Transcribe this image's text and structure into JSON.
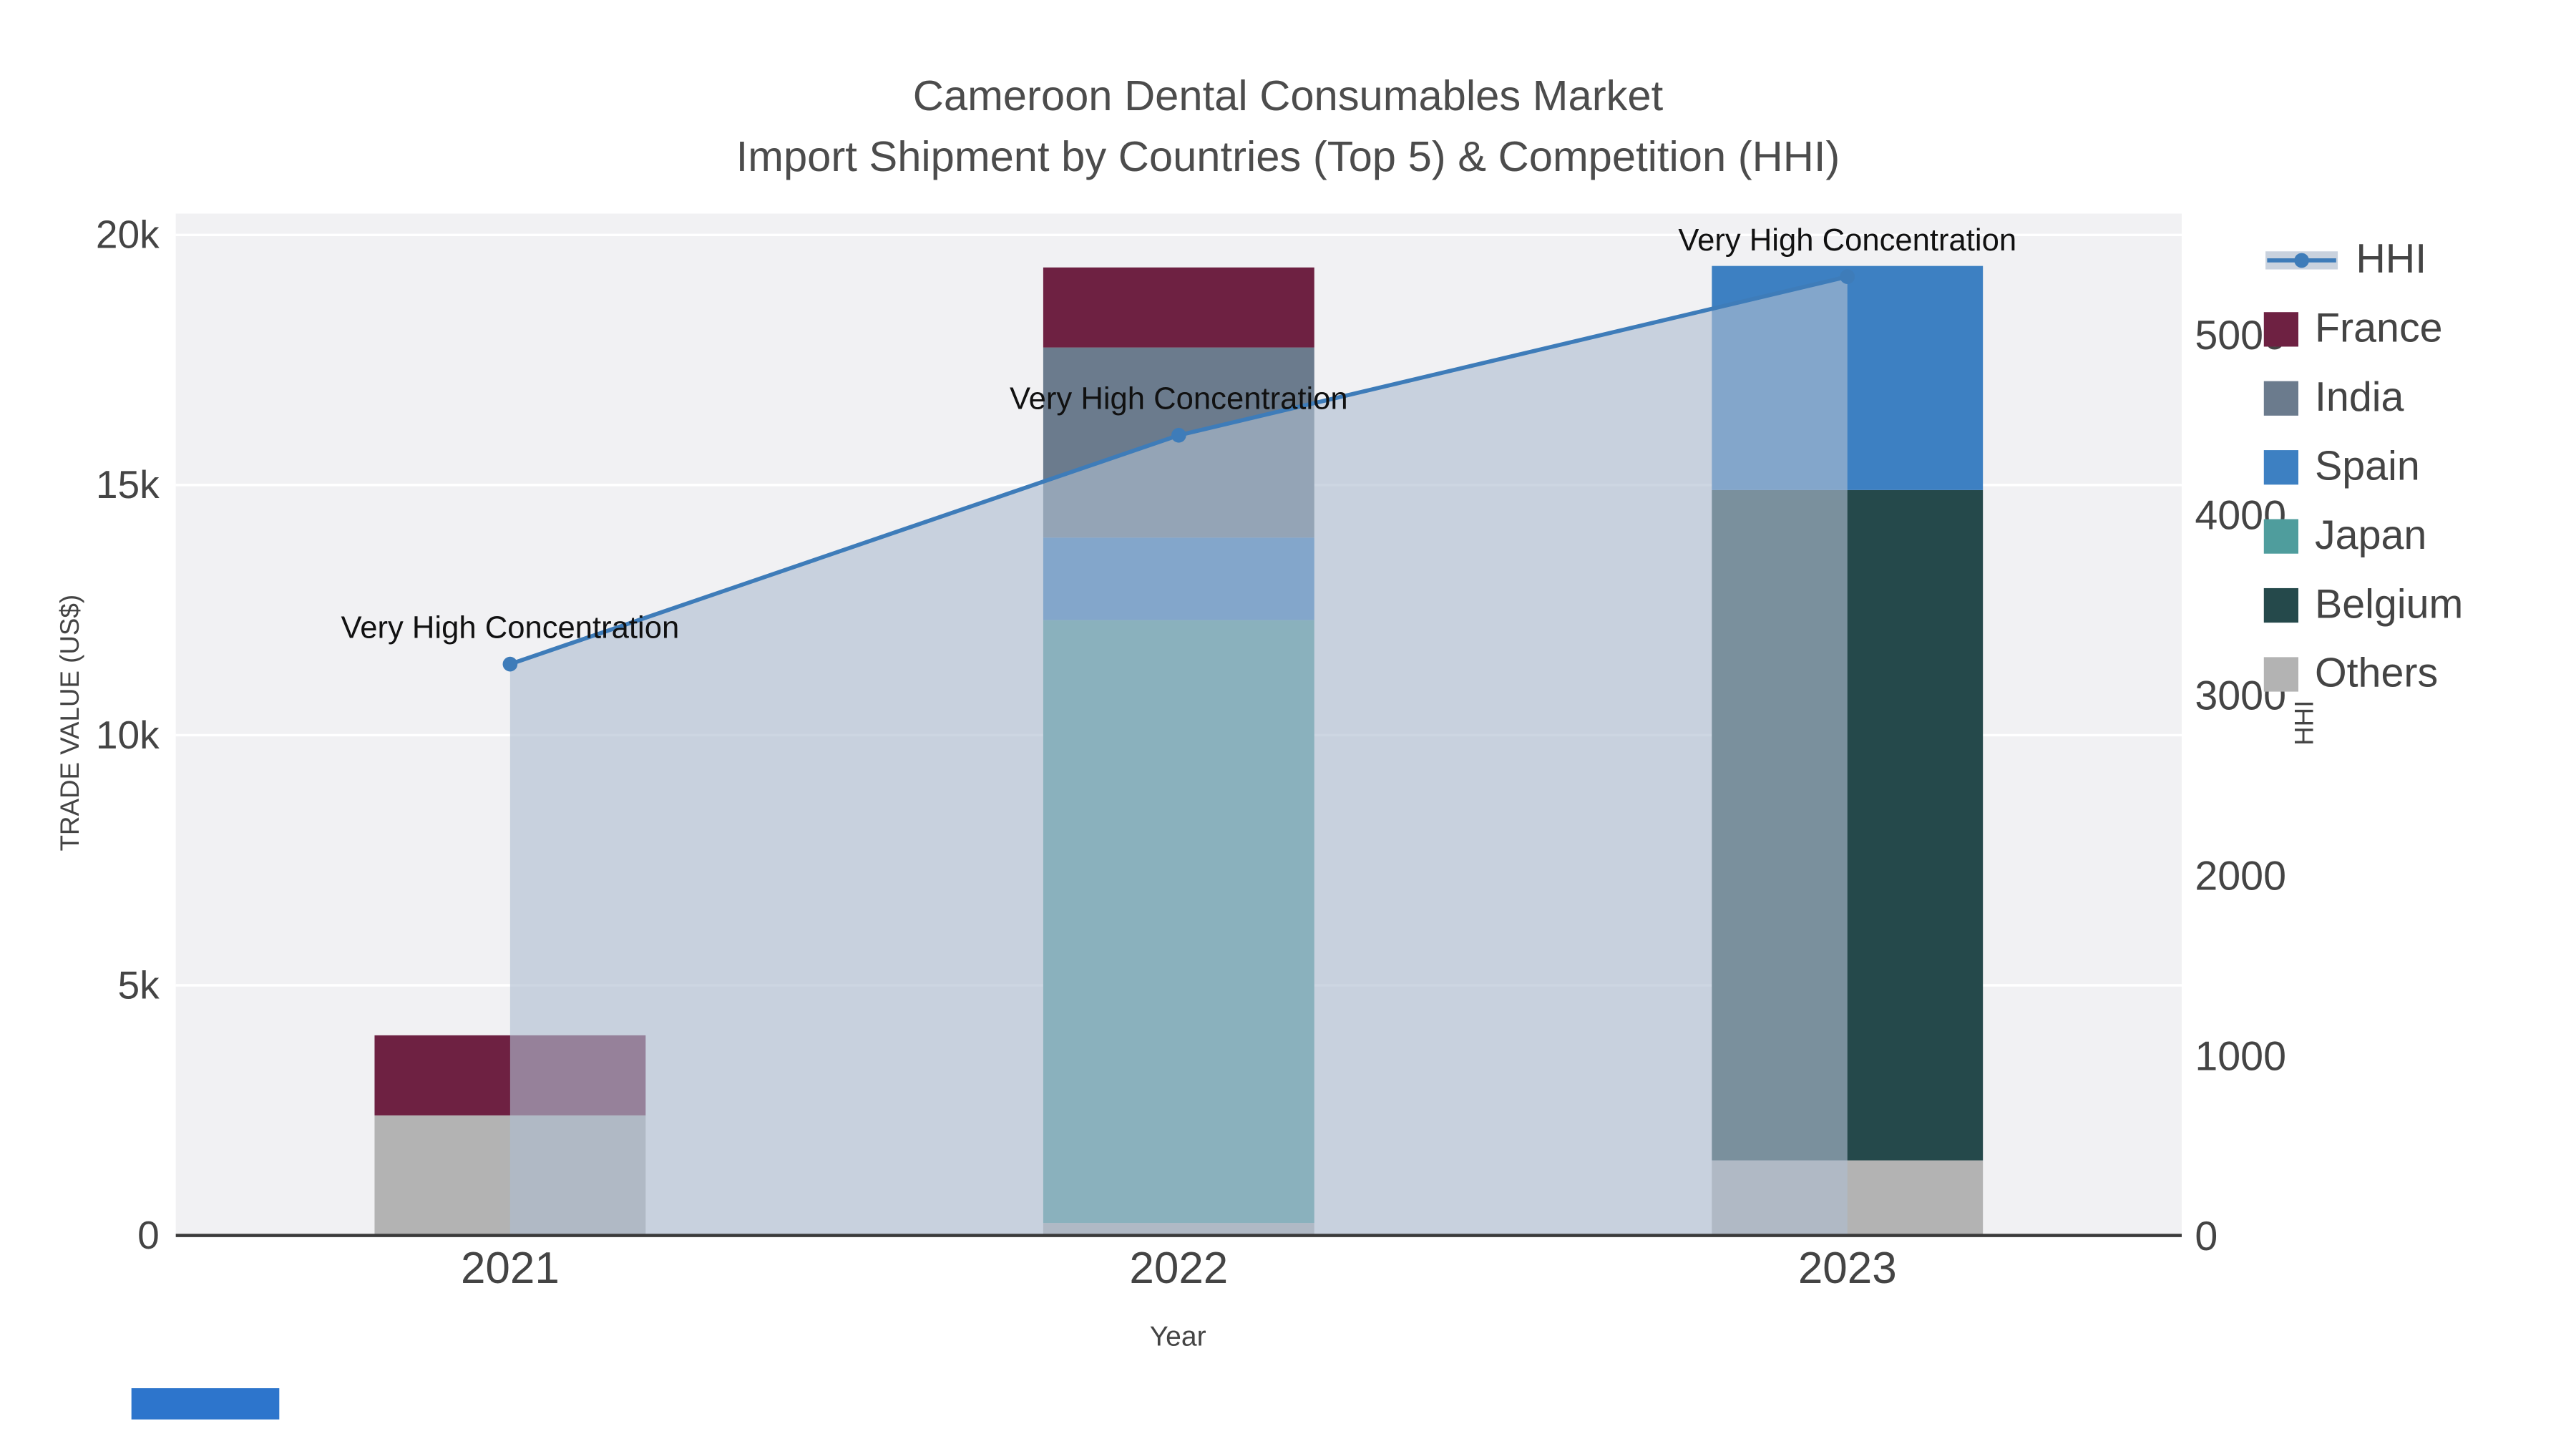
{
  "title": {
    "line1": "Cameroon Dental Consumables Market",
    "line2": "Import Shipment by Countries (Top 5) & Competition (HHI)"
  },
  "chart_data": {
    "type": "bar",
    "subtype": "stacked bars with HHI line + filled area on secondary axis",
    "categories": [
      "2021",
      "2022",
      "2023"
    ],
    "series": [
      {
        "name": "France",
        "type": "bar",
        "values": [
          1600,
          1600,
          0
        ],
        "color": "#6e2142"
      },
      {
        "name": "India",
        "type": "bar",
        "values": [
          0,
          3800,
          0
        ],
        "color": "#6b7b8d"
      },
      {
        "name": "Spain",
        "type": "bar",
        "values": [
          0,
          1650,
          4480
        ],
        "color": "#3d80c2"
      },
      {
        "name": "Japan",
        "type": "bar",
        "values": [
          0,
          12050,
          0
        ],
        "color": "#4f9d9d"
      },
      {
        "name": "Belgium",
        "type": "bar",
        "values": [
          0,
          0,
          13400
        ],
        "color": "#25494b"
      },
      {
        "name": "Others",
        "type": "bar",
        "values": [
          2400,
          250,
          1500
        ],
        "color": "#b3b3b3"
      }
    ],
    "hhi": {
      "name": "HHI",
      "type": "line",
      "values": [
        3170,
        4440,
        5320
      ],
      "color": "#3e7cb9",
      "area_fill": "rgba(174,189,208,0.62)"
    },
    "annotations": [
      {
        "x_index": 0,
        "text": "Very High Concentration"
      },
      {
        "x_index": 1,
        "text": "Very High Concentration"
      },
      {
        "x_index": 2,
        "text": "Very High Concentration"
      }
    ],
    "left_axis": {
      "title": "TRADE VALUE (US$)",
      "ticks": [
        0,
        5000,
        10000,
        15000,
        20000
      ],
      "tick_labels": [
        "0",
        "5k",
        "10k",
        "15k",
        "20k"
      ],
      "range": [
        0,
        20427
      ]
    },
    "right_axis": {
      "title": "HHI",
      "ticks": [
        0,
        1000,
        2000,
        3000,
        4000,
        5000
      ],
      "tick_labels": [
        "0",
        "1000",
        "2000",
        "3000",
        "4000",
        "5000"
      ],
      "range": [
        0,
        5670
      ]
    },
    "x_axis": {
      "title": "Year"
    },
    "colors": {
      "plot_background": "#f1f1f3",
      "grid": "#ffffff",
      "axis_line": "#3b3b3b",
      "tick_text": "#444444",
      "annotation_text": "#111111"
    }
  },
  "legend": {
    "items": [
      {
        "label": "HHI",
        "swatch": "line",
        "color": "#3e7cb9"
      },
      {
        "label": "France",
        "swatch": "square",
        "color": "#6e2142"
      },
      {
        "label": "India",
        "swatch": "square",
        "color": "#6b7b8d"
      },
      {
        "label": "Spain",
        "swatch": "square",
        "color": "#3d80c2"
      },
      {
        "label": "Japan",
        "swatch": "square",
        "color": "#4f9d9d"
      },
      {
        "label": "Belgium",
        "swatch": "square",
        "color": "#25494b"
      },
      {
        "label": "Others",
        "swatch": "square",
        "color": "#b3b3b3"
      }
    ]
  }
}
